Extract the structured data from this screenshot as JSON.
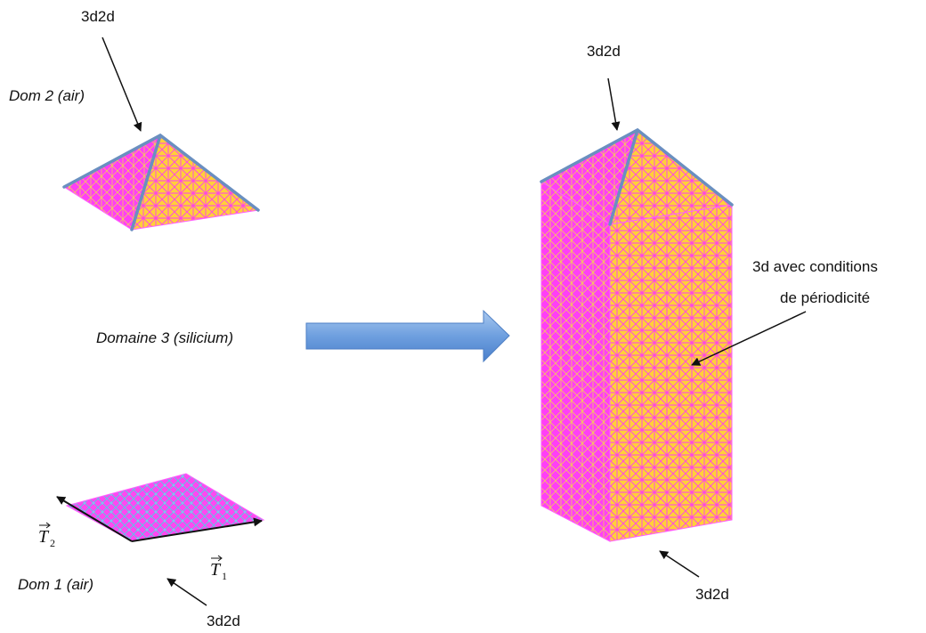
{
  "labels": {
    "top_left_tag": "3d2d",
    "dom2": "Dom 2 (air)",
    "domaine3": "Domaine 3 (silicium)",
    "dom1": "Dom 1 (air)",
    "bottom_left_tag": "3d2d",
    "top_right_tag": "3d2d",
    "periodic_line1": "3d avec conditions",
    "periodic_line2": "de périodicité",
    "bottom_right_tag": "3d2d"
  },
  "vectors": {
    "t2_symbol": "T",
    "t2_sub": "2",
    "t1_symbol": "T",
    "t1_sub": "1"
  },
  "colors": {
    "mesh_magenta": "#ff40ff",
    "mesh_yellow": "#ffd23c",
    "mesh_blue": "#5fb8e0",
    "edge_blue": "#6a8fc0",
    "arrow_blue": "#5b8fd6"
  }
}
